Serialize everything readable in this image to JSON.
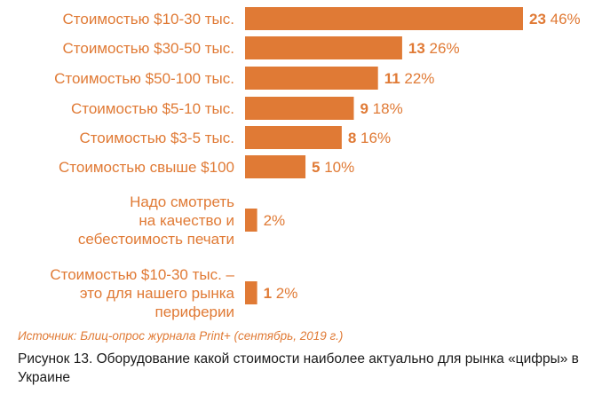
{
  "chart_data": {
    "type": "bar",
    "orientation": "horizontal",
    "color": "#e07a35",
    "categories": [
      [
        "Стоимостью $10-30 тыс."
      ],
      [
        "Стоимостью $30-50 тыс."
      ],
      [
        "Стоимостью $50-100 тыс."
      ],
      [
        "Стоимостью $5-10 тыс."
      ],
      [
        "Стоимостью $3-5 тыс."
      ],
      [
        "Стоимостью свыше $100"
      ],
      [
        "Надо смотреть",
        "на качество и",
        "себестоимость печати"
      ],
      [
        "Стоимостью $10-30 тыс. –",
        "это для нашего рынка",
        "периферии"
      ]
    ],
    "values": [
      23,
      13,
      11,
      9,
      8,
      5,
      null,
      1
    ],
    "value_labels": [
      "23",
      "13",
      "11",
      "9",
      "8",
      "5",
      "",
      "1"
    ],
    "percent_labels": [
      "46%",
      "26%",
      "22%",
      "18%",
      "16%",
      "10%",
      "2%",
      "2%"
    ],
    "percent_values": [
      46,
      26,
      22,
      18,
      16,
      10,
      2,
      2
    ],
    "grid": false,
    "legend": "none"
  },
  "source": "Источник: Блиц-опрос журнала Print+ (сентябрь, 2019 г.)",
  "caption": "Рисунок 13. Оборудование какой стоимости наиболее актуально для рынка «цифры» в Украине"
}
